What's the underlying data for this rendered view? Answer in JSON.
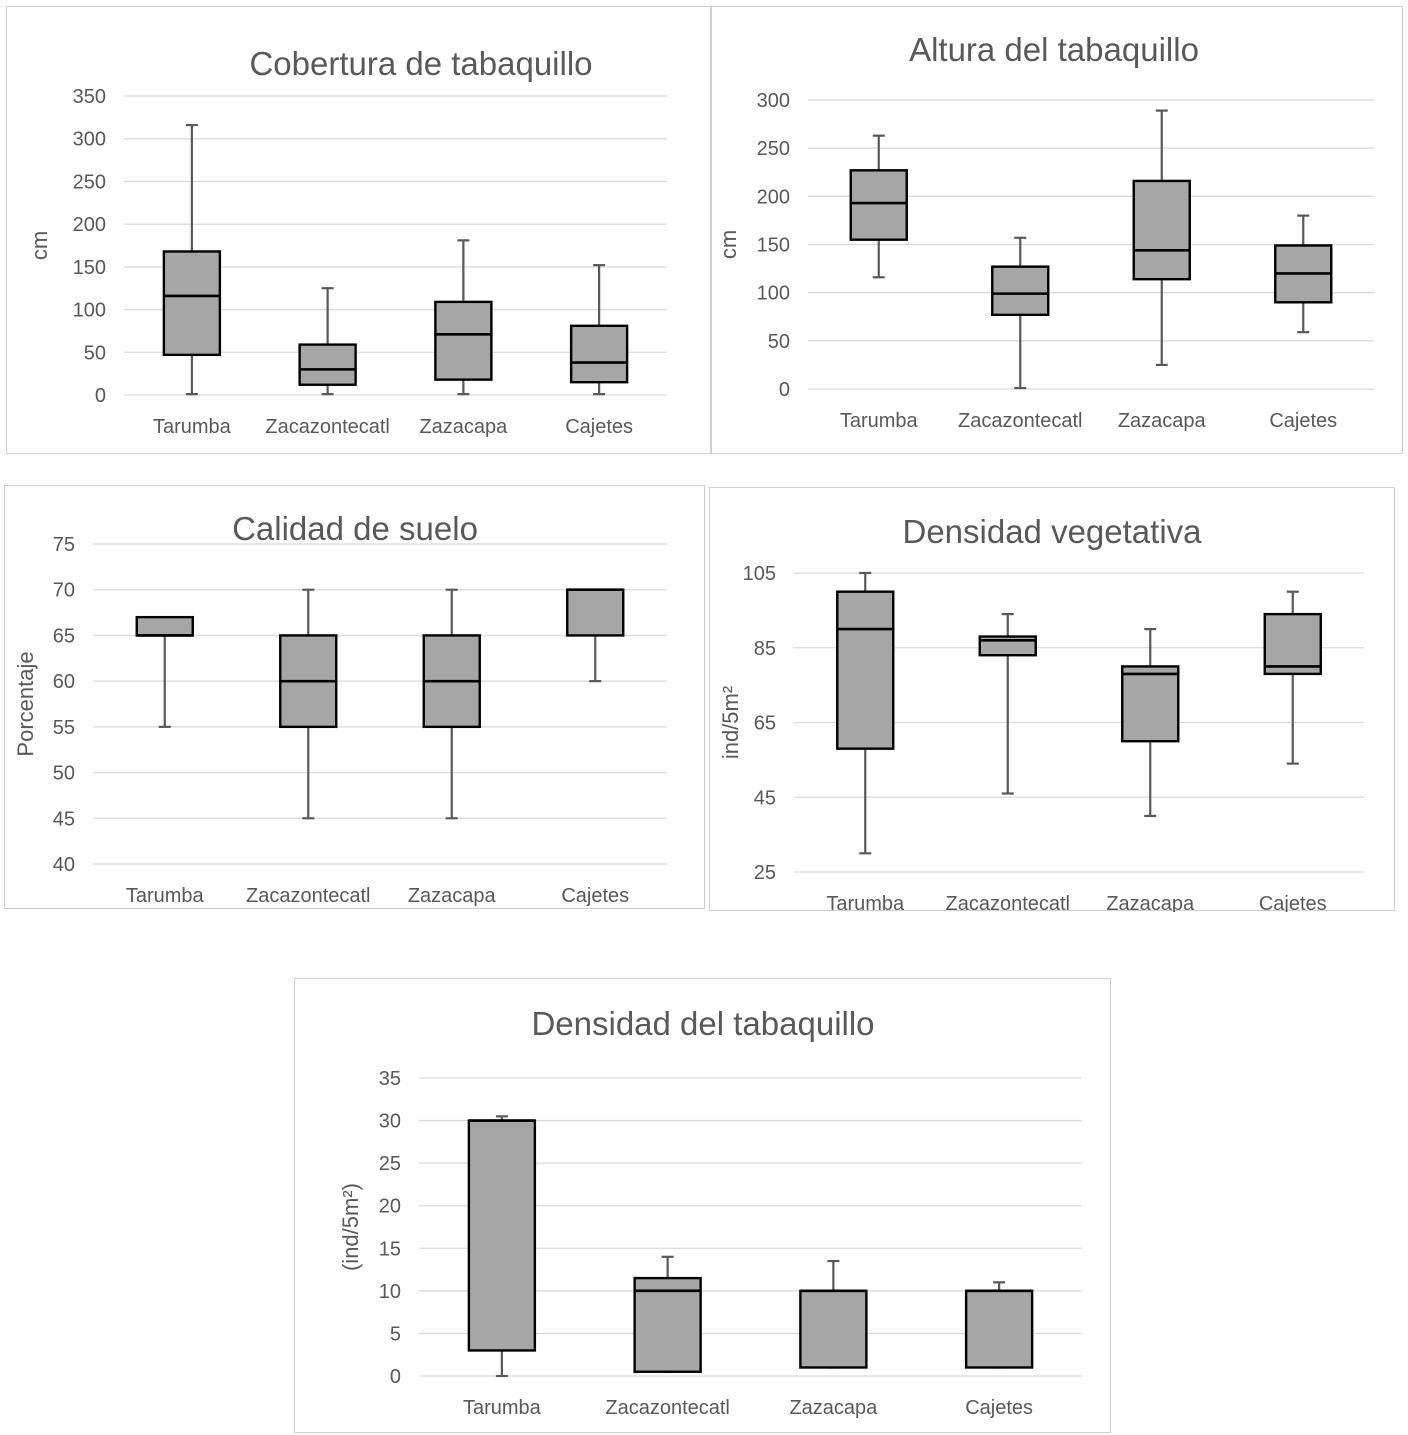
{
  "colors": {
    "box_fill": "#a6a6a6",
    "box_stroke": "#000000",
    "whisker": "#595959",
    "grid": "#d9d9d9",
    "text": "#595959"
  },
  "chart_data": [
    {
      "type": "box",
      "title": "Cobertura de tabaquillo",
      "xlabel": "",
      "ylabel": "cm",
      "ylim": [
        0,
        350
      ],
      "yticks": [
        0,
        50,
        100,
        150,
        200,
        250,
        300,
        350
      ],
      "grid": true,
      "categories": [
        "Tarumba",
        "Zacazontecatl",
        "Zazacapa",
        "Cajetes"
      ],
      "boxes": [
        {
          "min": 1,
          "q1": 47,
          "median": 116,
          "q3": 168,
          "max": 316
        },
        {
          "min": 1,
          "q1": 12,
          "median": 30,
          "q3": 59,
          "max": 125
        },
        {
          "min": 1,
          "q1": 18,
          "median": 71,
          "q3": 109,
          "max": 181
        },
        {
          "min": 1,
          "q1": 15,
          "median": 38,
          "q3": 81,
          "max": 152
        }
      ]
    },
    {
      "type": "box",
      "title": "Altura del tabaquillo",
      "xlabel": "",
      "ylabel": "cm",
      "ylim": [
        0,
        300
      ],
      "yticks": [
        0,
        50,
        100,
        150,
        200,
        250,
        300
      ],
      "grid": true,
      "categories": [
        "Tarumba",
        "Zacazontecatl",
        "Zazacapa",
        "Cajetes"
      ],
      "boxes": [
        {
          "min": 116,
          "q1": 155,
          "median": 193,
          "q3": 227,
          "max": 263
        },
        {
          "min": 1,
          "q1": 77,
          "median": 99,
          "q3": 127,
          "max": 157
        },
        {
          "min": 25,
          "q1": 114,
          "median": 144,
          "q3": 216,
          "max": 289
        },
        {
          "min": 59,
          "q1": 90,
          "median": 120,
          "q3": 149,
          "max": 180
        }
      ]
    },
    {
      "type": "box",
      "title": "Calidad de suelo",
      "xlabel": "",
      "ylabel": "Porcentaje",
      "ylim": [
        40,
        75
      ],
      "yticks": [
        40,
        45,
        50,
        55,
        60,
        65,
        70,
        75
      ],
      "grid": true,
      "categories": [
        "Tarumba",
        "Zacazontecatl",
        "Zazacapa",
        "Cajetes"
      ],
      "boxes": [
        {
          "min": 55,
          "q1": 65,
          "median": 65,
          "q3": 67,
          "max": 67
        },
        {
          "min": 45,
          "q1": 55,
          "median": 60,
          "q3": 65,
          "max": 70
        },
        {
          "min": 45,
          "q1": 55,
          "median": 60,
          "q3": 65,
          "max": 70
        },
        {
          "min": 60,
          "q1": 65,
          "median": 70,
          "q3": 70,
          "max": 70
        }
      ]
    },
    {
      "type": "box",
      "title": "Densidad vegetativa",
      "xlabel": "",
      "ylabel": "ind/5m²",
      "ylim": [
        25,
        105
      ],
      "yticks": [
        25,
        45,
        65,
        85,
        105
      ],
      "grid": true,
      "categories": [
        "Tarumba",
        "Zacazontecatl",
        "Zazacapa",
        "Cajetes"
      ],
      "boxes": [
        {
          "min": 30,
          "q1": 58,
          "median": 90,
          "q3": 100,
          "max": 105
        },
        {
          "min": 46,
          "q1": 83,
          "median": 87,
          "q3": 88,
          "max": 94
        },
        {
          "min": 40,
          "q1": 60,
          "median": 78,
          "q3": 80,
          "max": 90
        },
        {
          "min": 54,
          "q1": 78,
          "median": 80,
          "q3": 94,
          "max": 100
        }
      ]
    },
    {
      "type": "box",
      "title": "Densidad del tabaquillo",
      "xlabel": "",
      "ylabel": "(ind/5m²)",
      "ylim": [
        0,
        35
      ],
      "yticks": [
        0,
        5,
        10,
        15,
        20,
        25,
        30,
        35
      ],
      "grid": true,
      "categories": [
        "Tarumba",
        "Zacazontecatl",
        "Zazacapa",
        "Cajetes"
      ],
      "boxes": [
        {
          "min": 0,
          "q1": 3,
          "median": 30,
          "q3": 30,
          "max": 30.5
        },
        {
          "min": 0.5,
          "q1": 0.5,
          "median": 10,
          "q3": 11.5,
          "max": 14
        },
        {
          "min": 1,
          "q1": 1,
          "median": 10,
          "q3": 10,
          "max": 13.5
        },
        {
          "min": 1,
          "q1": 1,
          "median": 10,
          "q3": 10,
          "max": 11
        }
      ]
    }
  ]
}
